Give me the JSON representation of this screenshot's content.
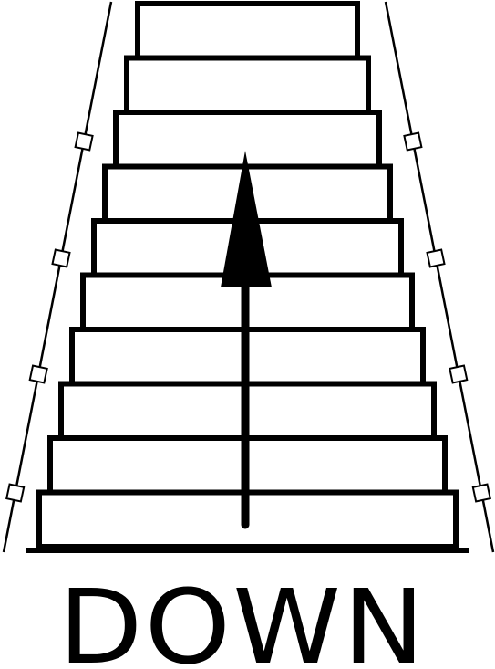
{
  "sign": {
    "label": "DOWN",
    "direction_icon": "up-arrow-icon",
    "steps_count": 10,
    "railing_posts_per_side": 4
  },
  "colors": {
    "ink": "#000000",
    "paper": "#ffffff"
  }
}
